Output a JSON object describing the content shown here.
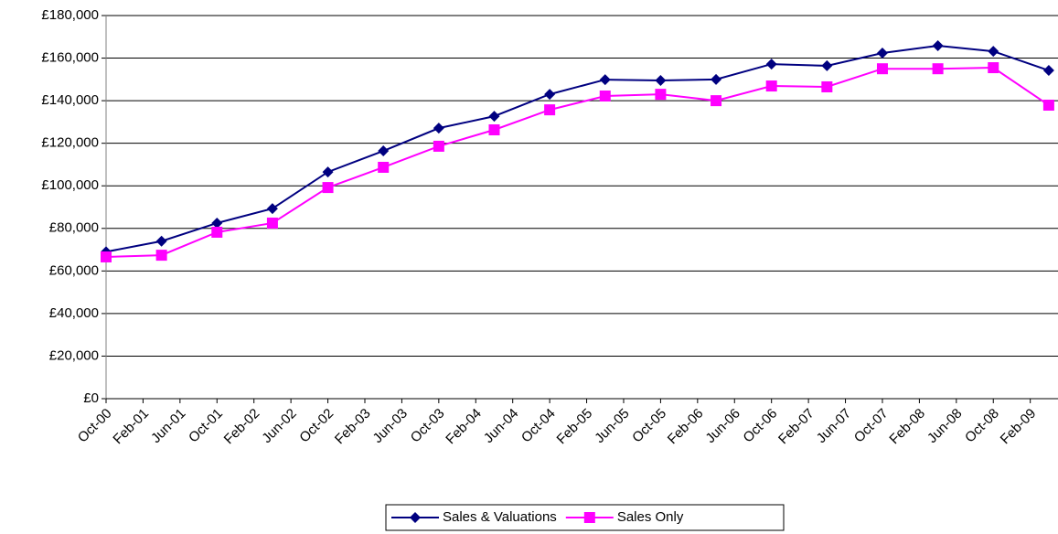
{
  "chart_data": {
    "type": "line",
    "x": [
      0,
      6,
      12,
      18,
      24,
      30,
      36,
      42,
      48,
      54,
      60,
      66,
      72,
      78,
      84,
      90,
      96,
      102
    ],
    "xlim": [
      0,
      103
    ],
    "xticks": [
      {
        "value": 0,
        "label": "Oct-00"
      },
      {
        "value": 4,
        "label": "Feb-01"
      },
      {
        "value": 8,
        "label": "Jun-01"
      },
      {
        "value": 12,
        "label": "Oct-01"
      },
      {
        "value": 16,
        "label": "Feb-02"
      },
      {
        "value": 20,
        "label": "Jun-02"
      },
      {
        "value": 24,
        "label": "Oct-02"
      },
      {
        "value": 28,
        "label": "Feb-03"
      },
      {
        "value": 32,
        "label": "Jun-03"
      },
      {
        "value": 36,
        "label": "Oct-03"
      },
      {
        "value": 40,
        "label": "Feb-04"
      },
      {
        "value": 44,
        "label": "Jun-04"
      },
      {
        "value": 48,
        "label": "Oct-04"
      },
      {
        "value": 52,
        "label": "Feb-05"
      },
      {
        "value": 56,
        "label": "Jun-05"
      },
      {
        "value": 60,
        "label": "Oct-05"
      },
      {
        "value": 64,
        "label": "Feb-06"
      },
      {
        "value": 68,
        "label": "Jun-06"
      },
      {
        "value": 72,
        "label": "Oct-06"
      },
      {
        "value": 76,
        "label": "Feb-07"
      },
      {
        "value": 80,
        "label": "Jun-07"
      },
      {
        "value": 84,
        "label": "Oct-07"
      },
      {
        "value": 88,
        "label": "Feb-08"
      },
      {
        "value": 92,
        "label": "Jun-08"
      },
      {
        "value": 96,
        "label": "Oct-08"
      },
      {
        "value": 100,
        "label": "Feb-09"
      }
    ],
    "ylim": [
      0,
      180000
    ],
    "yticks": [
      {
        "value": 0,
        "label": "£0"
      },
      {
        "value": 20000,
        "label": "£20,000"
      },
      {
        "value": 40000,
        "label": "£40,000"
      },
      {
        "value": 60000,
        "label": "£60,000"
      },
      {
        "value": 80000,
        "label": "£80,000"
      },
      {
        "value": 100000,
        "label": "£100,000"
      },
      {
        "value": 120000,
        "label": "£120,000"
      },
      {
        "value": 140000,
        "label": "£140,000"
      },
      {
        "value": 160000,
        "label": "£160,000"
      },
      {
        "value": 180000,
        "label": "£180,000"
      }
    ],
    "grid": true,
    "legend": "bottom",
    "series": [
      {
        "name": "Sales & Valuations",
        "color": "#000080",
        "marker": "diamond",
        "values": [
          69000,
          74000,
          82500,
          89300,
          106500,
          116400,
          127100,
          132700,
          143000,
          149900,
          149500,
          150000,
          157200,
          156400,
          162400,
          165800,
          163200,
          154200
        ]
      },
      {
        "name": "Sales Only",
        "color": "#ff00ff",
        "marker": "square",
        "values": [
          66600,
          67400,
          78200,
          82500,
          99200,
          108700,
          118600,
          126300,
          135700,
          142200,
          143000,
          140000,
          146900,
          146500,
          155000,
          155000,
          155500,
          137900
        ]
      }
    ]
  }
}
